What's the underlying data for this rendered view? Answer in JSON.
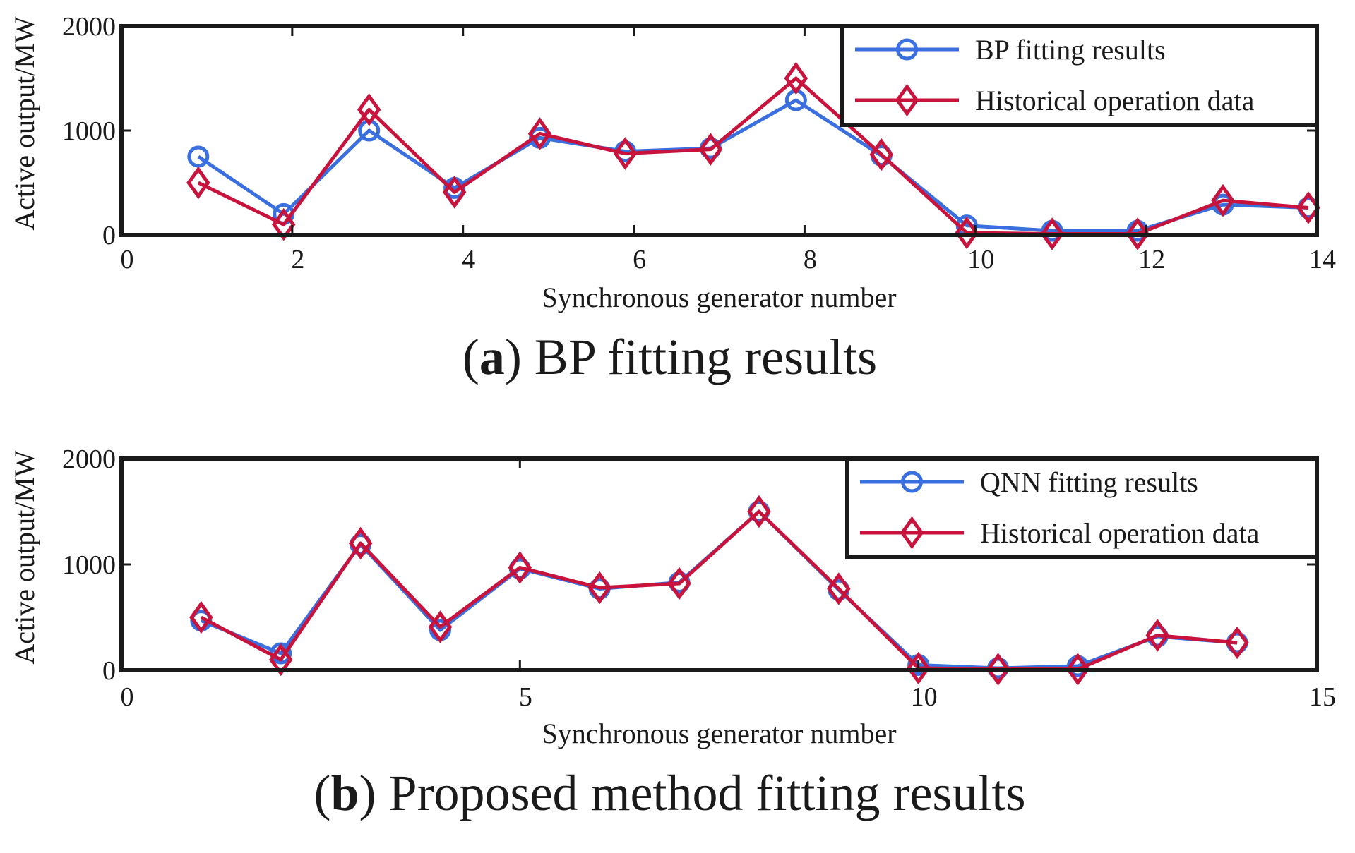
{
  "chart_data": [
    {
      "type": "line",
      "panel": "a",
      "xlabel": "Synchronous generator number",
      "ylabel": "Active output/MW",
      "xlim": [
        0,
        14
      ],
      "ylim": [
        0,
        2000
      ],
      "xticks": [
        0,
        2,
        4,
        6,
        8,
        10,
        12,
        14
      ],
      "yticks": [
        0,
        1000,
        2000
      ],
      "legend_position": "top-right",
      "caption": {
        "letter": "a",
        "text": "BP fitting results"
      },
      "series": [
        {
          "name": "BP fitting results",
          "color": "#3a6fe0",
          "marker": "circle",
          "x": [
            0.9,
            1.9,
            2.9,
            3.9,
            4.9,
            5.9,
            6.9,
            7.9,
            8.9,
            9.9,
            10.9,
            11.9,
            12.9,
            13.9
          ],
          "values": [
            750,
            200,
            1000,
            450,
            930,
            800,
            830,
            1290,
            760,
            90,
            40,
            40,
            290,
            260
          ]
        },
        {
          "name": "Historical operation data",
          "color": "#c8133c",
          "marker": "diamond",
          "x": [
            0.9,
            1.9,
            2.9,
            3.9,
            4.9,
            5.9,
            6.9,
            7.9,
            8.9,
            9.9,
            10.9,
            11.9,
            12.9,
            13.9
          ],
          "values": [
            500,
            100,
            1200,
            410,
            970,
            780,
            820,
            1500,
            770,
            20,
            10,
            10,
            330,
            260
          ]
        }
      ]
    },
    {
      "type": "line",
      "panel": "b",
      "xlabel": "Synchronous generator number",
      "ylabel": "Active output/MW",
      "xlim": [
        0,
        15
      ],
      "ylim": [
        0,
        2000
      ],
      "xticks": [
        0,
        5,
        10,
        15
      ],
      "yticks": [
        0,
        1000,
        2000
      ],
      "legend_position": "top-right",
      "caption": {
        "letter": "b",
        "text": "Proposed method fitting results"
      },
      "series": [
        {
          "name": "QNN fitting results",
          "color": "#3a6fe0",
          "marker": "circle",
          "x": [
            1,
            2,
            3,
            4,
            5,
            6,
            7,
            8,
            9,
            10,
            11,
            12,
            13,
            14
          ],
          "values": [
            470,
            160,
            1190,
            380,
            960,
            770,
            830,
            1500,
            760,
            50,
            20,
            40,
            320,
            260
          ]
        },
        {
          "name": "Historical operation data",
          "color": "#c8133c",
          "marker": "diamond",
          "x": [
            1,
            2,
            3,
            4,
            5,
            6,
            7,
            8,
            9,
            10,
            11,
            12,
            13,
            14
          ],
          "values": [
            500,
            100,
            1200,
            410,
            970,
            780,
            820,
            1500,
            770,
            20,
            10,
            10,
            330,
            260
          ]
        }
      ]
    }
  ]
}
